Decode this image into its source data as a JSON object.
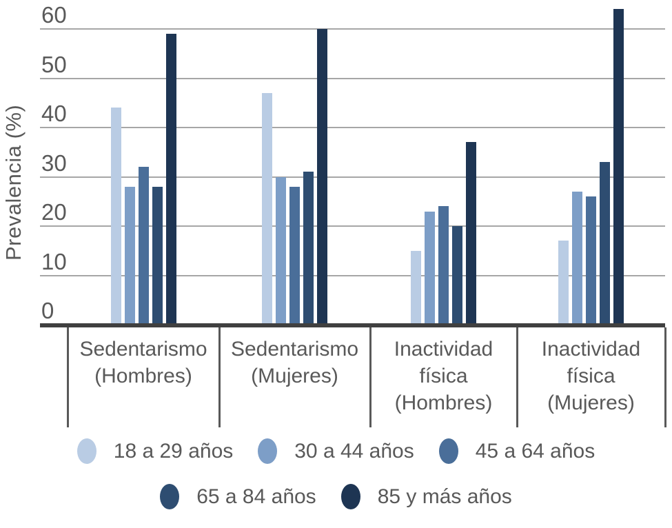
{
  "chart_data": {
    "type": "bar",
    "title": "",
    "xlabel": "",
    "ylabel": "Prevalencia (%)",
    "ylim": [
      0,
      60
    ],
    "yticks": [
      0,
      10,
      20,
      30,
      40,
      50,
      60
    ],
    "grid": true,
    "legend_position": "bottom",
    "legend_rows": [
      [
        0,
        1,
        2
      ],
      [
        3,
        4
      ]
    ],
    "categories": [
      "Sedentarismo (Hombres)",
      "Sedentarismo (Mujeres)",
      "Inactividad física (Hombres)",
      "Inactividad física (Mujeres)"
    ],
    "series": [
      {
        "name": "18 a 29 años",
        "color": "#b9cce4",
        "values": [
          44,
          47,
          15,
          17
        ]
      },
      {
        "name": "30 a 44 años",
        "color": "#7d9ec7",
        "values": [
          28,
          30,
          23,
          27
        ]
      },
      {
        "name": "45 a 64 años",
        "color": "#4a6e99",
        "values": [
          32,
          28,
          24,
          26
        ]
      },
      {
        "name": "65 a 84 años",
        "color": "#2e4d71",
        "values": [
          28,
          31,
          20,
          33
        ]
      },
      {
        "name": "85 y más años",
        "color": "#1e3553",
        "values": [
          59,
          60,
          37,
          64
        ]
      }
    ]
  },
  "style": {
    "background": "#ffffff",
    "text_color": "#595959",
    "gridline_color": "#a6a6a6",
    "axis_color": "#404040",
    "divider_color": "#595959"
  }
}
